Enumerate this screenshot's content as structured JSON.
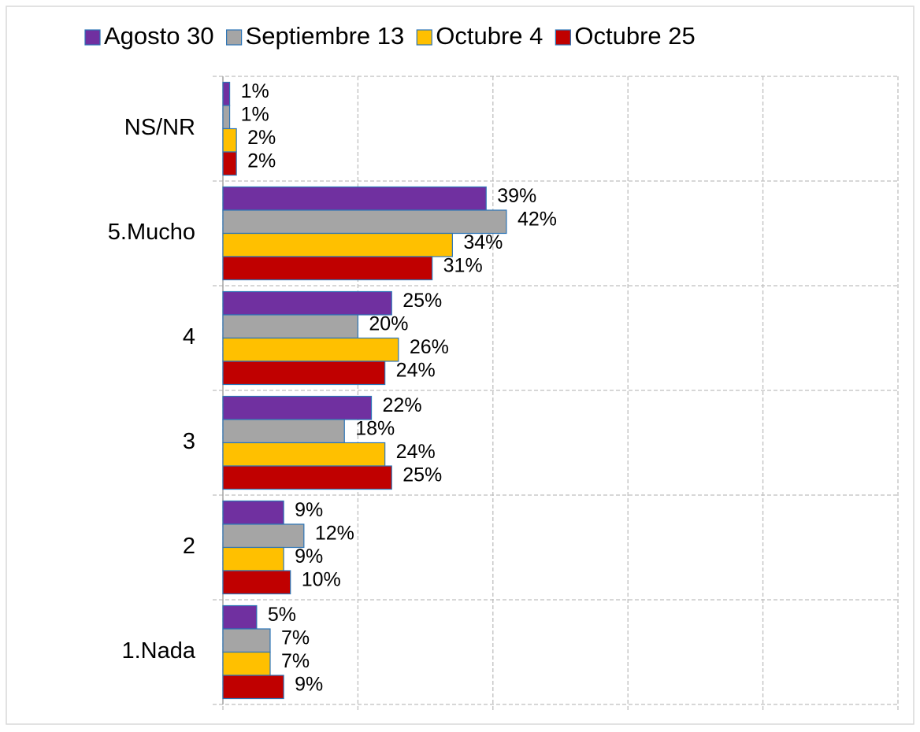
{
  "chart_data": {
    "type": "barh",
    "categories": [
      "NS/NR",
      "5.Mucho",
      "4",
      "3",
      "2",
      "1.Nada"
    ],
    "series": [
      {
        "name": "Agosto 30",
        "color": "#7030a0",
        "values": [
          1,
          39,
          25,
          22,
          9,
          5
        ],
        "value_labels": [
          "1%",
          "39%",
          "25%",
          "22%",
          "9%",
          "5%"
        ]
      },
      {
        "name": "Septiembre 13",
        "color": "#a5a5a5",
        "values": [
          1,
          42,
          20,
          18,
          12,
          7
        ],
        "value_labels": [
          "1%",
          "42%",
          "20%",
          "18%",
          "12%",
          "7%"
        ]
      },
      {
        "name": "Octubre 4",
        "color": "#ffc000",
        "values": [
          2,
          34,
          26,
          24,
          9,
          7
        ],
        "value_labels": [
          "2%",
          "34%",
          "26%",
          "24%",
          "9%",
          "7%"
        ]
      },
      {
        "name": "Octubre 25",
        "color": "#c00000",
        "values": [
          2,
          31,
          24,
          25,
          10,
          9
        ],
        "value_labels": [
          "2%",
          "31%",
          "24%",
          "25%",
          "10%",
          "9%"
        ]
      }
    ],
    "xlim": [
      0,
      100
    ],
    "xticks": [
      0,
      20,
      40,
      60,
      80,
      100
    ],
    "grid": true,
    "legend": "top"
  }
}
